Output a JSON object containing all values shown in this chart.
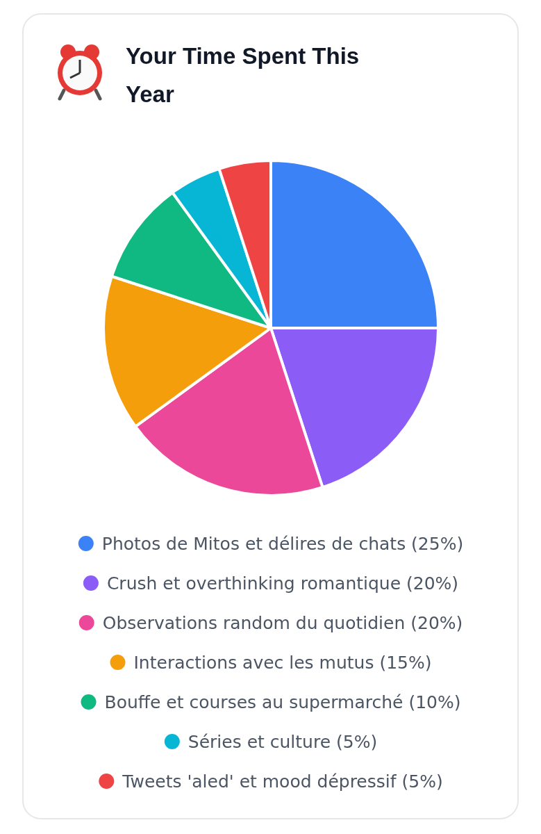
{
  "chart_data": {
    "type": "pie",
    "title": "Your Time Spent This Year",
    "categories": [
      "Photos de Mitos et délires de chats (25%)",
      "Crush et overthinking romantique (20%)",
      "Observations random du quotidien (20%)",
      "Interactions avec les mutus (15%)",
      "Bouffe et courses au supermarché (10%)",
      "Séries et culture (5%)",
      "Tweets 'aled' et mood dépressif (5%)"
    ],
    "values": [
      25,
      20,
      20,
      15,
      10,
      5,
      5
    ],
    "colors": [
      "#3b82f6",
      "#8b5cf6",
      "#ec4899",
      "#f59e0b",
      "#10b981",
      "#06b6d4",
      "#ef4444"
    ],
    "legend": "bottom"
  }
}
